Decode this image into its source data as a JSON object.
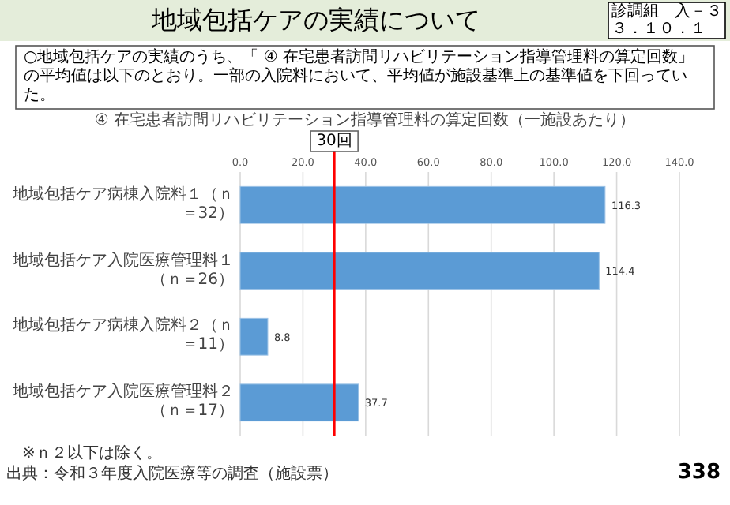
{
  "chart_data": {
    "type": "bar",
    "orientation": "horizontal",
    "title": "地域包括ケアの実績について",
    "subtitle": "④ 在宅患者訪問リハビリテーション指導管理料の算定回数（一施設あたり）",
    "categories": [
      "地域包括ケア病棟入院料１（ｎ＝32）",
      "地域包括ケア入院医療管理料１（ｎ＝26）",
      "地域包括ケア病棟入院料２（ｎ＝11）",
      "地域包括ケア入院医療管理料２（ｎ＝17）"
    ],
    "values": [
      116.3,
      114.4,
      8.8,
      37.7
    ],
    "color": "#5b9bd5",
    "data_labels": true,
    "xlim": [
      0,
      140
    ],
    "xticks": [
      {
        "value": 0,
        "label": "0.0"
      },
      {
        "value": 20,
        "label": "20.0"
      },
      {
        "value": 40,
        "label": "40.0"
      },
      {
        "value": 60,
        "label": "60.0"
      },
      {
        "value": 80,
        "label": "80.0"
      },
      {
        "value": 100,
        "label": "100.0"
      },
      {
        "value": 120,
        "label": "120.0"
      },
      {
        "value": 140,
        "label": "140.0"
      }
    ],
    "grid": "x",
    "ref_lines": [
      {
        "axis": "x",
        "value": 30,
        "label": "30回",
        "color": "#ff0000"
      }
    ],
    "annotations": [
      "○地域包括ケアの実績のうち、「 ④ 在宅患者訪問リハビリテーション指導管理料の算定回数」の平均値は以下のとおり。一部の入院料において、平均値が施設基準上の基準値を下回っていた。",
      "診調組　入－３",
      "３．１０．１",
      "※ｎ２以下は除く。",
      "出典：令和３年度入院医療等の調査（施設票）",
      "338"
    ]
  }
}
